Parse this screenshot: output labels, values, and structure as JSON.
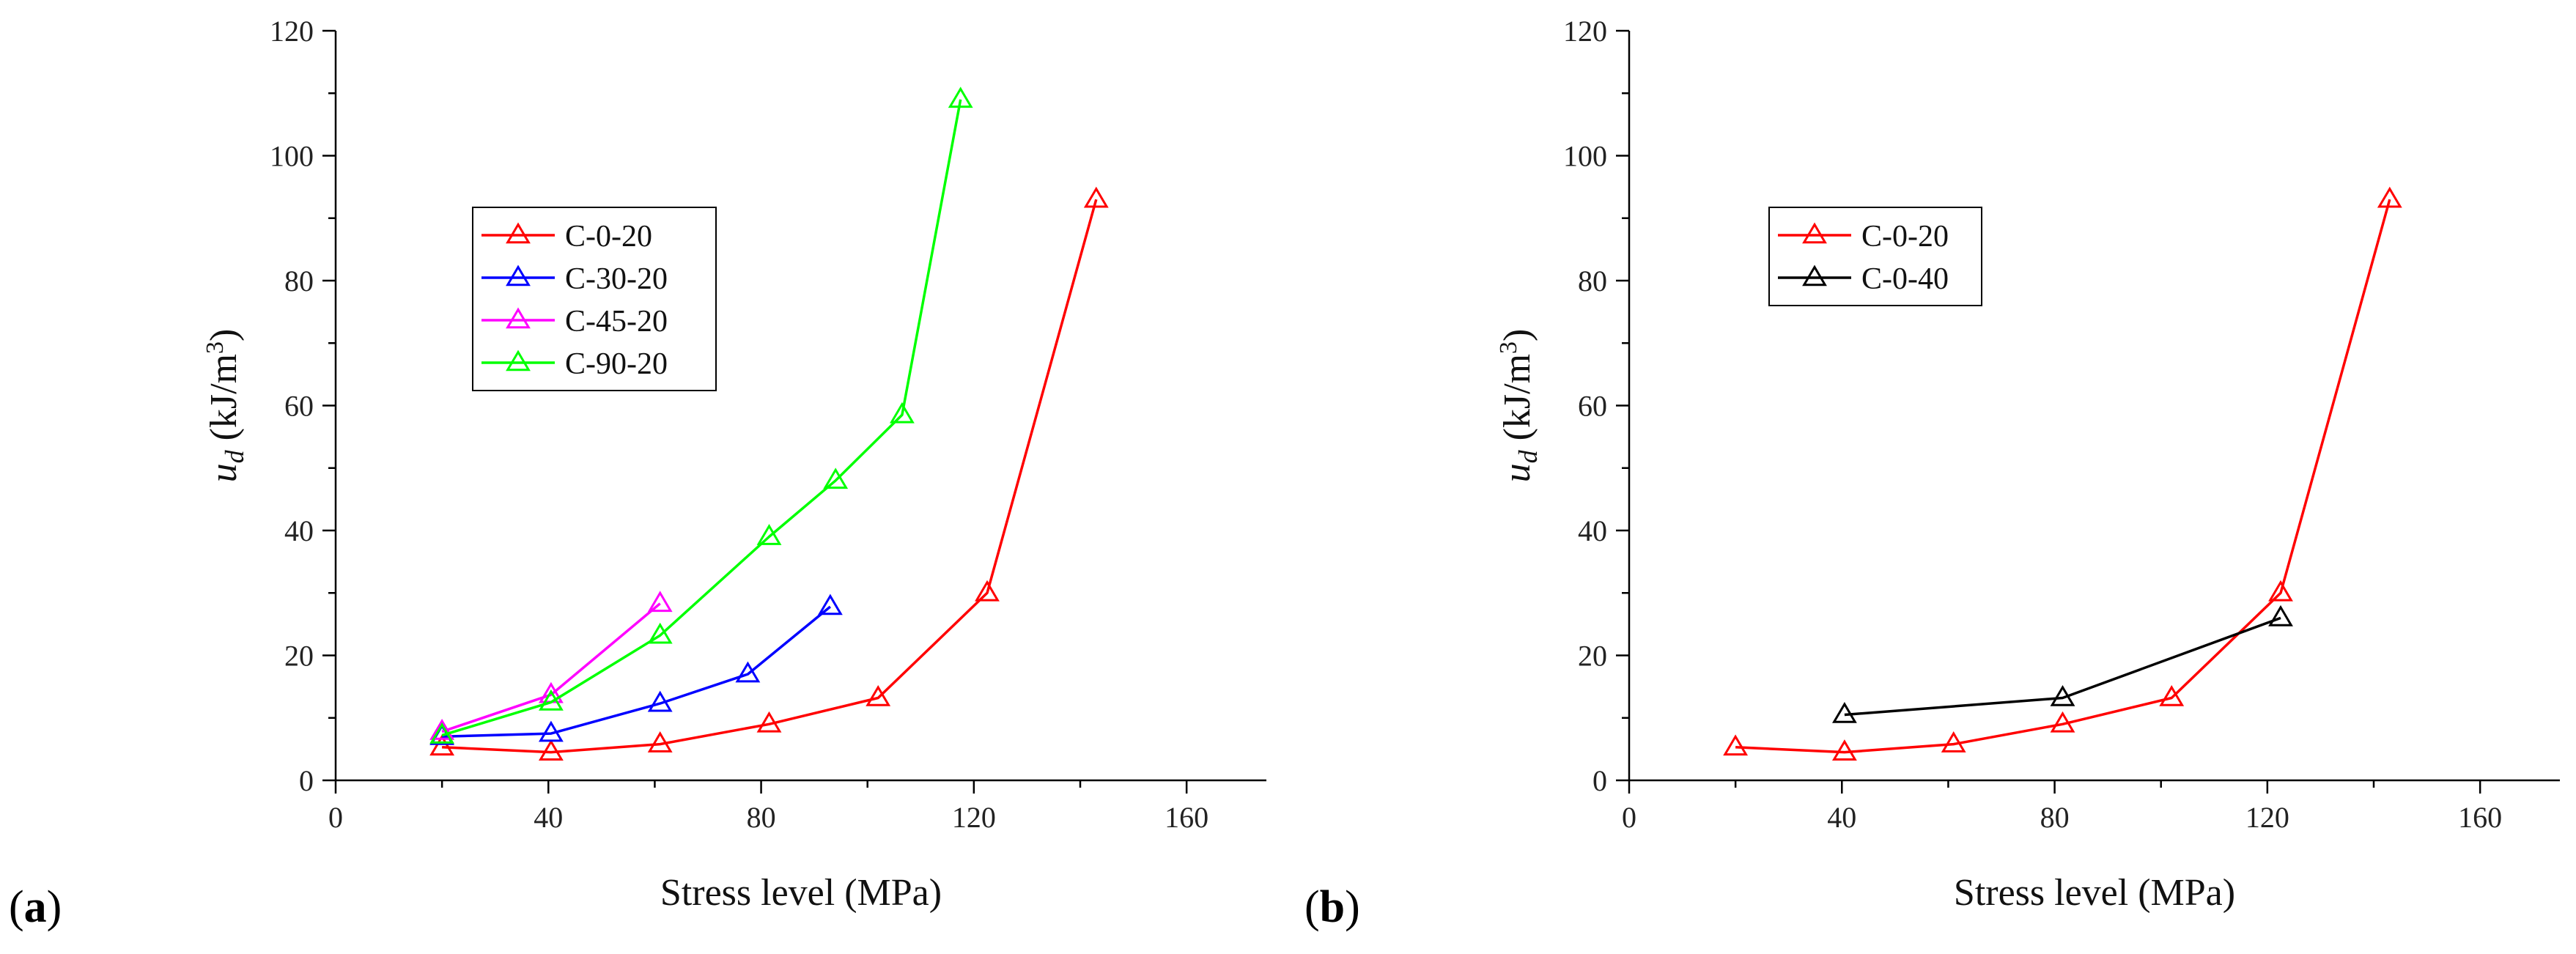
{
  "chart_data": [
    {
      "type": "line",
      "panel_label": "(a)",
      "xlabel": "Stress level (MPa)",
      "ylabel_main": "u",
      "ylabel_sub": "d",
      "ylabel_unit": " (kJ/m",
      "ylabel_sup": "3",
      "ylabel_close": ")",
      "xlim": [
        0,
        175
      ],
      "ylim": [
        0,
        120
      ],
      "xticks": [
        0,
        40,
        80,
        120,
        160
      ],
      "yticks": [
        0,
        20,
        40,
        60,
        80,
        100,
        120
      ],
      "grid": false,
      "legend_position": "upper-left",
      "marker": "open-triangle",
      "series": [
        {
          "name": "C-0-20",
          "color": "#ff0000",
          "x": [
            20,
            40.5,
            61,
            81.5,
            102,
            122.5,
            143
          ],
          "y": [
            5.3,
            4.5,
            5.8,
            9.0,
            13.2,
            30.0,
            93.0
          ]
        },
        {
          "name": "C-30-20",
          "color": "#0000ff",
          "x": [
            20,
            40.5,
            61,
            77.5,
            93
          ],
          "y": [
            7.0,
            7.5,
            12.3,
            17.0,
            27.8
          ]
        },
        {
          "name": "C-45-20",
          "color": "#ff00ff",
          "x": [
            20,
            40.5,
            61
          ],
          "y": [
            7.8,
            13.7,
            28.3
          ]
        },
        {
          "name": "C-90-20",
          "color": "#00ff00",
          "x": [
            20,
            40.5,
            61,
            81.5,
            94,
            106.5,
            117.5
          ],
          "y": [
            7.2,
            12.5,
            23.2,
            39.0,
            48.0,
            58.5,
            109.0
          ]
        }
      ]
    },
    {
      "type": "line",
      "panel_label": "(b)",
      "xlabel": "Stress level (MPa)",
      "ylabel_main": "u",
      "ylabel_sub": "d",
      "ylabel_unit": " (kJ/m",
      "ylabel_sup": "3",
      "ylabel_close": ")",
      "xlim": [
        0,
        175
      ],
      "ylim": [
        0,
        120
      ],
      "xticks": [
        0,
        40,
        80,
        120,
        160
      ],
      "yticks": [
        0,
        20,
        40,
        60,
        80,
        100,
        120
      ],
      "grid": false,
      "legend_position": "upper-left",
      "marker": "open-triangle",
      "series": [
        {
          "name": "C-0-20",
          "color": "#ff0000",
          "x": [
            20,
            40.5,
            61,
            81.5,
            102,
            122.5,
            143
          ],
          "y": [
            5.3,
            4.5,
            5.8,
            9.0,
            13.2,
            30.0,
            93.0
          ]
        },
        {
          "name": "C-0-40",
          "color": "#000000",
          "x": [
            40.5,
            81.5,
            122.5
          ],
          "y": [
            10.5,
            13.2,
            26.0
          ]
        }
      ]
    }
  ]
}
